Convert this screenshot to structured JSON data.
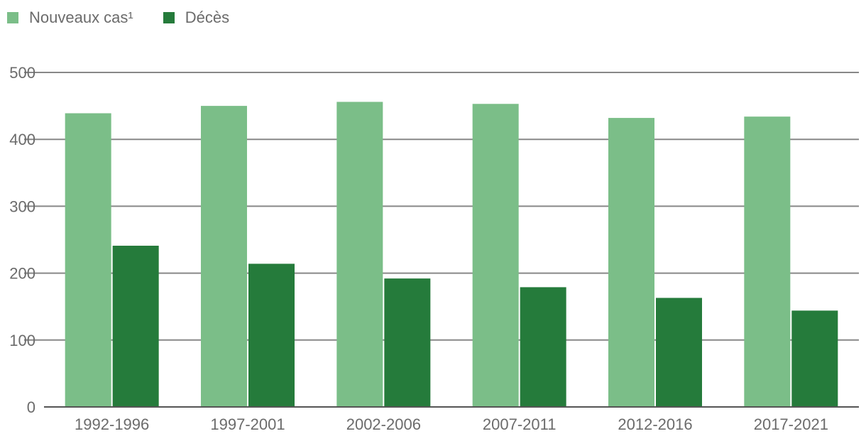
{
  "chart_data": {
    "type": "bar",
    "categories": [
      "1992-1996",
      "1997-2001",
      "2002-2006",
      "2007-2011",
      "2012-2016",
      "2017-2021"
    ],
    "series": [
      {
        "name": "Nouveaux cas¹",
        "values": [
          439,
          450,
          456,
          453,
          432,
          434
        ]
      },
      {
        "name": "Décès",
        "values": [
          241,
          214,
          192,
          179,
          163,
          144
        ]
      }
    ],
    "title": "",
    "xlabel": "",
    "ylabel": "",
    "ylim": [
      0,
      500
    ],
    "yticks": [
      0,
      100,
      200,
      300,
      400,
      500
    ],
    "grid": true,
    "legend_position": "top-left"
  },
  "colors": {
    "series": [
      "#7bbe88",
      "#257b3b"
    ],
    "grid": "#888888",
    "text": "#6b6b6b"
  }
}
